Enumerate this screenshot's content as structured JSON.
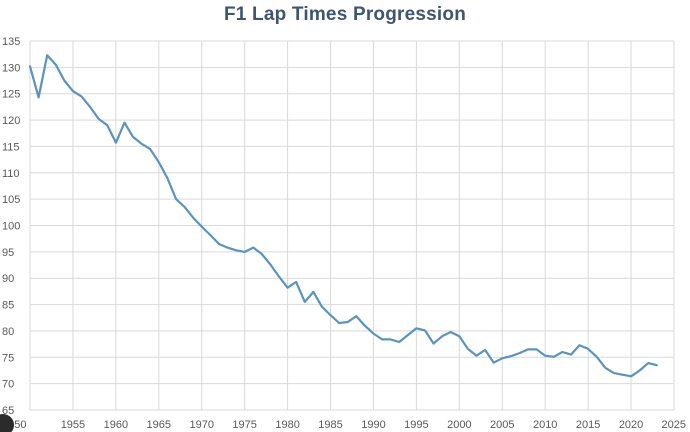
{
  "chart_data": {
    "type": "line",
    "title": "F1 Lap Times Progression",
    "xlabel": "",
    "ylabel": "",
    "xlim": [
      1950,
      2025
    ],
    "ylim": [
      65,
      135
    ],
    "xticks": [
      1950,
      1955,
      1960,
      1965,
      1970,
      1975,
      1980,
      1985,
      1990,
      1995,
      2000,
      2005,
      2010,
      2015,
      2020,
      2025
    ],
    "yticks": [
      65,
      70,
      75,
      80,
      85,
      90,
      95,
      100,
      105,
      110,
      115,
      120,
      125,
      130,
      135
    ],
    "grid": true,
    "legend": "none",
    "series": [
      {
        "color": "#5b93bd",
        "x": [
          1950,
          1951,
          1952,
          1953,
          1954,
          1955,
          1956,
          1957,
          1958,
          1959,
          1960,
          1961,
          1962,
          1963,
          1964,
          1965,
          1966,
          1967,
          1968,
          1969,
          1970,
          1971,
          1972,
          1973,
          1974,
          1975,
          1976,
          1977,
          1978,
          1979,
          1980,
          1981,
          1982,
          1983,
          1984,
          1985,
          1986,
          1987,
          1988,
          1989,
          1990,
          1991,
          1992,
          1993,
          1994,
          1995,
          1996,
          1997,
          1998,
          1999,
          2000,
          2001,
          2002,
          2003,
          2004,
          2005,
          2006,
          2007,
          2008,
          2009,
          2010,
          2011,
          2012,
          2013,
          2014,
          2015,
          2016,
          2017,
          2018,
          2019,
          2020,
          2021,
          2022,
          2023
        ],
        "y": [
          130.2,
          124.3,
          132.3,
          130.5,
          127.5,
          125.5,
          124.5,
          122.5,
          120.2,
          119.0,
          115.7,
          119.5,
          116.8,
          115.5,
          114.5,
          112.0,
          109.0,
          105.0,
          103.5,
          101.5,
          99.8,
          98.2,
          96.5,
          95.8,
          95.3,
          95.0,
          95.8,
          94.6,
          92.6,
          90.3,
          88.2,
          89.3,
          85.5,
          87.4,
          84.6,
          83.0,
          81.5,
          81.7,
          82.8,
          81.0,
          79.5,
          78.4,
          78.4,
          77.9,
          79.2,
          80.5,
          80.1,
          77.6,
          79.0,
          79.8,
          79.0,
          76.6,
          75.3,
          76.4,
          74.0,
          74.8,
          75.2,
          75.8,
          76.5,
          76.5,
          75.3,
          75.1,
          76.0,
          75.5,
          77.3,
          76.6,
          75.1,
          73.0,
          72.0,
          71.7,
          71.4,
          72.5,
          73.9,
          73.5
        ]
      }
    ]
  },
  "colors": {
    "title": "#3f5570",
    "tick_label": "#595959",
    "grid": "#d9d9d9",
    "line": "#5b93bd"
  }
}
